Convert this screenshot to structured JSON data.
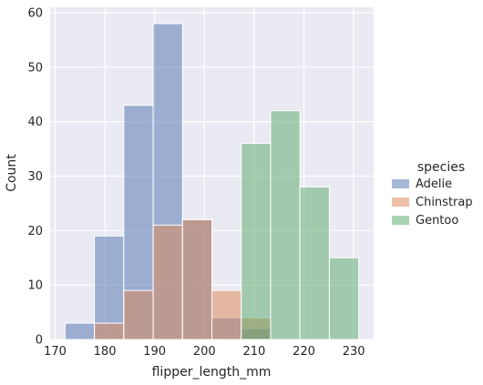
{
  "chart_data": {
    "type": "bar",
    "subtype": "histogram",
    "xlabel": "flipper_length_mm",
    "ylabel": "Count",
    "xlim": [
      169.0,
      234.0
    ],
    "ylim": [
      0,
      61
    ],
    "xticks": [
      170,
      180,
      190,
      200,
      210,
      220,
      230
    ],
    "yticks": [
      0,
      10,
      20,
      30,
      40,
      50,
      60
    ],
    "grid": true,
    "background": "#eaeaf2",
    "legend": {
      "title": "species",
      "position": "right"
    },
    "bin_edges": [
      172.0,
      177.9,
      183.8,
      189.7,
      195.6,
      201.5,
      207.4,
      213.3,
      219.2,
      225.1,
      231.0
    ],
    "series": [
      {
        "name": "Adelie",
        "color": "#4c72b0",
        "values": [
          3,
          19,
          43,
          58,
          22,
          4,
          2,
          0,
          0,
          0
        ]
      },
      {
        "name": "Chinstrap",
        "color": "#dd8452",
        "values": [
          0,
          3,
          9,
          21,
          22,
          9,
          4,
          0,
          0,
          0
        ]
      },
      {
        "name": "Gentoo",
        "color": "#55a868",
        "values": [
          0,
          0,
          0,
          0,
          0,
          0,
          36,
          42,
          28,
          15
        ]
      }
    ]
  }
}
